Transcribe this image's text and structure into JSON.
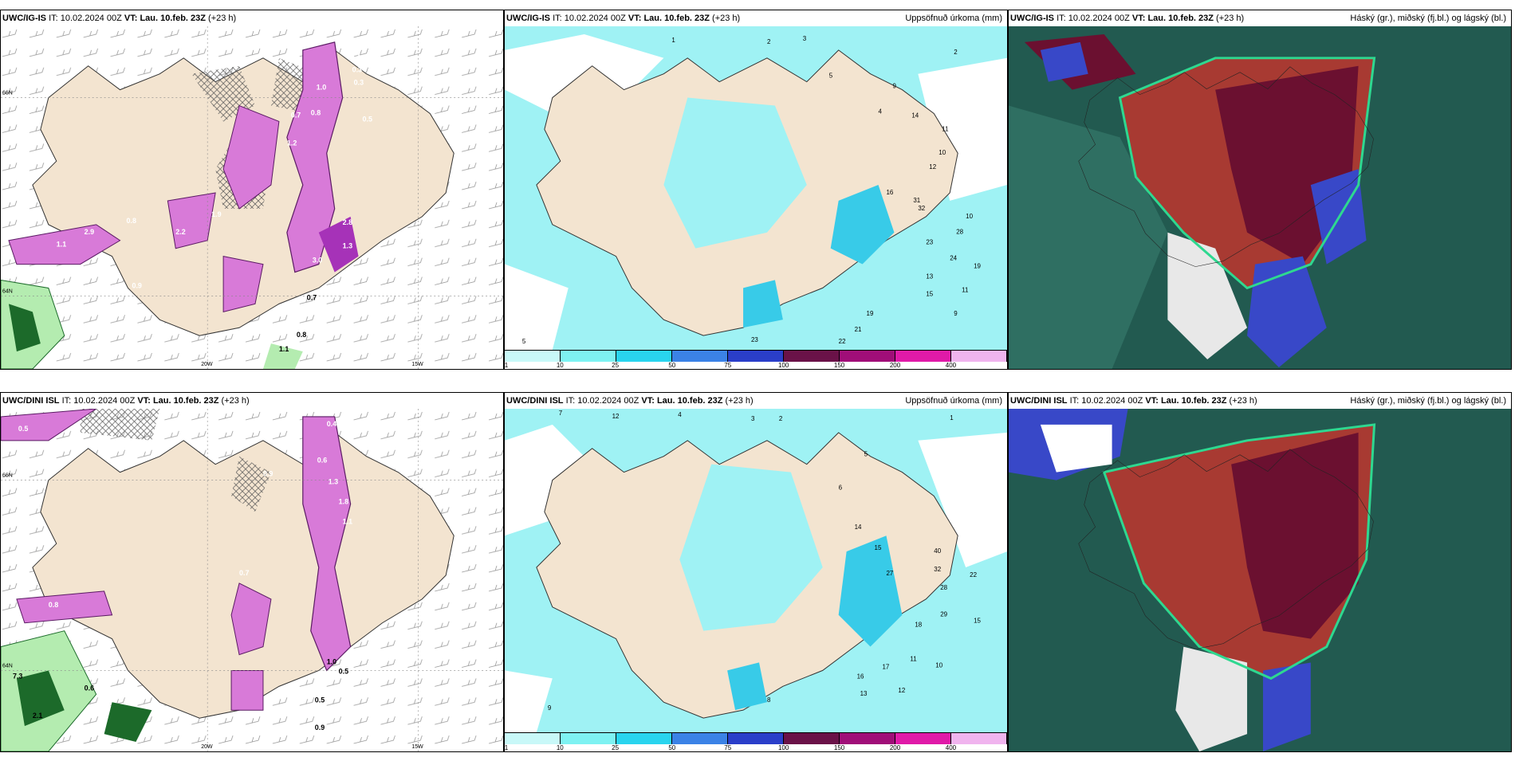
{
  "panels": [
    {
      "model": "UWC/IG-IS",
      "it_label": "IT:",
      "it": "10.02.2024 00Z",
      "vt_label": "VT:",
      "vt": "Lau. 10.feb. 23Z",
      "lead": "(+23 h)",
      "right_title": ""
    },
    {
      "model": "UWC/IG-IS",
      "it_label": "IT:",
      "it": "10.02.2024 00Z",
      "vt_label": "VT:",
      "vt": "Lau. 10.feb. 23Z",
      "lead": "(+23 h)",
      "right_title": "Uppsöfnuð úrkoma (mm)"
    },
    {
      "model": "UWC/IG-IS",
      "it_label": "IT:",
      "it": "10.02.2024 00Z",
      "vt_label": "VT:",
      "vt": "Lau. 10.feb. 23Z",
      "lead": "(+23 h)",
      "right_title": "Háský (gr.), miðský (fj.bl.) og lágský (bl.)"
    },
    {
      "model": "UWC/DINI ISL",
      "it_label": "IT:",
      "it": "10.02.2024 00Z",
      "vt_label": "VT:",
      "vt": "Lau. 10.feb. 23Z",
      "lead": "(+23 h)",
      "right_title": ""
    },
    {
      "model": "UWC/DINI ISL",
      "it_label": "IT:",
      "it": "10.02.2024 00Z",
      "vt_label": "VT:",
      "vt": "Lau. 10.feb. 23Z",
      "lead": "(+23 h)",
      "right_title": "Uppsöfnuð úrkoma (mm)"
    },
    {
      "model": "UWC/DINI ISL",
      "it_label": "IT:",
      "it": "10.02.2024 00Z",
      "vt_label": "VT:",
      "vt": "Lau. 10.feb. 23Z",
      "lead": "(+23 h)",
      "right_title": "Háský (gr.), miðský (fj.bl.) og lágský (bl.)"
    }
  ],
  "axis_labels": {
    "lat66": "66N",
    "lat64": "64N",
    "lon20": "20W",
    "lon15": "15W"
  },
  "colorbar": {
    "labels": [
      "1",
      "10",
      "25",
      "50",
      "75",
      "100",
      "150",
      "200",
      "400"
    ],
    "colors": [
      "#c8f8f8",
      "#7ef2f2",
      "#29d4ee",
      "#3b82e6",
      "#2a3ec9",
      "#6a1248",
      "#a00e78",
      "#e01aa8",
      "#f0b4ee"
    ]
  },
  "precip_values_top": [
    "0.4",
    "0.3",
    "0.3",
    "1.0",
    "0.8",
    "0.7",
    "0.5",
    "1.2",
    "2.9",
    "1.1",
    "0.8",
    "1.9",
    "2.2",
    "1.3",
    "2.8",
    "3.0",
    "0.9",
    "0.7",
    "0.8",
    "1.1"
  ],
  "precip_values_bottom": [
    "0.4",
    "0.6",
    "0.5",
    "0.8",
    "0.9",
    "1.1",
    "0.7",
    "1.8",
    "1.3",
    "1.0",
    "0.5",
    "7.3",
    "0.6",
    "2.1",
    "0.5",
    "0.9"
  ],
  "accum_values_top": [
    "1",
    "2",
    "3",
    "2",
    "5",
    "9",
    "4",
    "14",
    "11",
    "10",
    "12",
    "16",
    "31",
    "32",
    "10",
    "28",
    "23",
    "24",
    "19",
    "13",
    "15",
    "11",
    "9",
    "19",
    "21",
    "22",
    "23",
    "5"
  ],
  "accum_values_bottom": [
    "7",
    "12",
    "4",
    "3",
    "2",
    "1",
    "6",
    "5",
    "14",
    "15",
    "27",
    "40",
    "22",
    "32",
    "28",
    "29",
    "18",
    "15",
    "11",
    "10",
    "17",
    "16",
    "13",
    "12",
    "9",
    "8"
  ],
  "colors": {
    "land": "#f3e4d0",
    "ocean": "#ffffff",
    "precip_light": "#d87ad8",
    "precip_mid": "#a632b8",
    "precip_dark": "#5a1a63",
    "green_light": "#b4ecb0",
    "green_dark": "#1c6a2a",
    "cyan_light": "#9ff2f4",
    "cyan_mid": "#38cbe8",
    "cloud_high": "#225a50",
    "cloud_mid": "#a83a32",
    "cloud_low": "#6b1030",
    "cloud_blue": "#3848c8",
    "cloud_green": "#2ed890"
  }
}
